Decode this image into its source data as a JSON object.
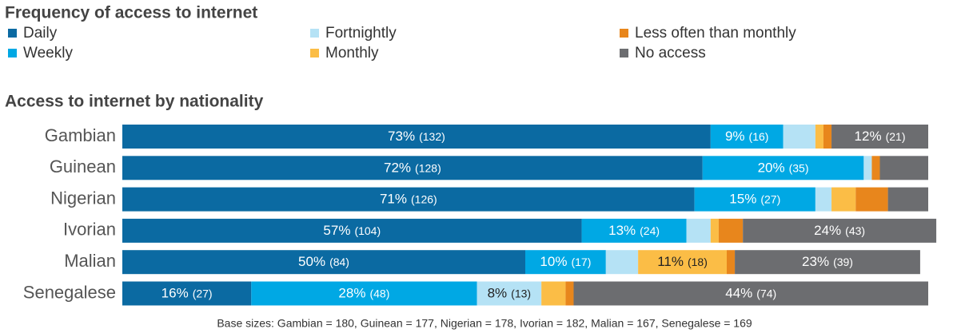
{
  "chart_data": {
    "type": "stacked-bar-horizontal",
    "title": "Frequency of access to internet",
    "subtitle": "Access to internet by nationality",
    "footnote": "Base sizes: Gambian = 180, Guinean = 177, Nigerian = 178, Ivorian = 182, Malian = 167, Senegalese = 169",
    "categories": [
      "Gambian",
      "Guinean",
      "Nigerian",
      "Ivorian",
      "Malian",
      "Senegalese"
    ],
    "xlim": [
      0,
      100
    ],
    "series": [
      {
        "name": "Daily",
        "color": "#0b6aa2",
        "values": [
          73,
          72,
          71,
          57,
          50,
          16
        ],
        "value_labels": [
          "73%",
          "72%",
          "71%",
          "57%",
          "50%",
          "16%"
        ],
        "count_labels": [
          "(132)",
          "(128)",
          "(126)",
          "(104)",
          "(84)",
          "(27)"
        ]
      },
      {
        "name": "Weekly",
        "color": "#00a8e4",
        "values": [
          9,
          20,
          15,
          13,
          10,
          28
        ],
        "value_labels": [
          "9%",
          "20%",
          "15%",
          "13%",
          "10%",
          "28%"
        ],
        "count_labels": [
          "(16)",
          "(35)",
          "(27)",
          "(24)",
          "(17)",
          "(48)"
        ]
      },
      {
        "name": "Fortnightly",
        "color": "#b5e2f5",
        "values": [
          4,
          1,
          2,
          3,
          4,
          8
        ],
        "value_labels": [
          null,
          null,
          null,
          null,
          null,
          "8%"
        ],
        "count_labels": [
          null,
          null,
          null,
          null,
          null,
          "(13)"
        ]
      },
      {
        "name": "Monthly",
        "color": "#fbbd46",
        "values": [
          1,
          0,
          3,
          1,
          11,
          3
        ],
        "value_labels": [
          null,
          null,
          null,
          null,
          "11%",
          null
        ],
        "count_labels": [
          null,
          null,
          null,
          null,
          "(18)",
          null
        ]
      },
      {
        "name": "Less often than monthly",
        "color": "#e8861c",
        "values": [
          1,
          1,
          4,
          3,
          1,
          1
        ],
        "value_labels": [
          null,
          null,
          null,
          null,
          null,
          null
        ],
        "count_labels": [
          null,
          null,
          null,
          null,
          null,
          null
        ]
      },
      {
        "name": "No access",
        "color": "#6c6d70",
        "values": [
          12,
          6,
          5,
          24,
          23,
          44
        ],
        "value_labels": [
          "12%",
          null,
          null,
          "24%",
          "23%",
          "44%"
        ],
        "count_labels": [
          "(21)",
          null,
          null,
          "(43)",
          "(39)",
          "(74)"
        ]
      }
    ]
  }
}
